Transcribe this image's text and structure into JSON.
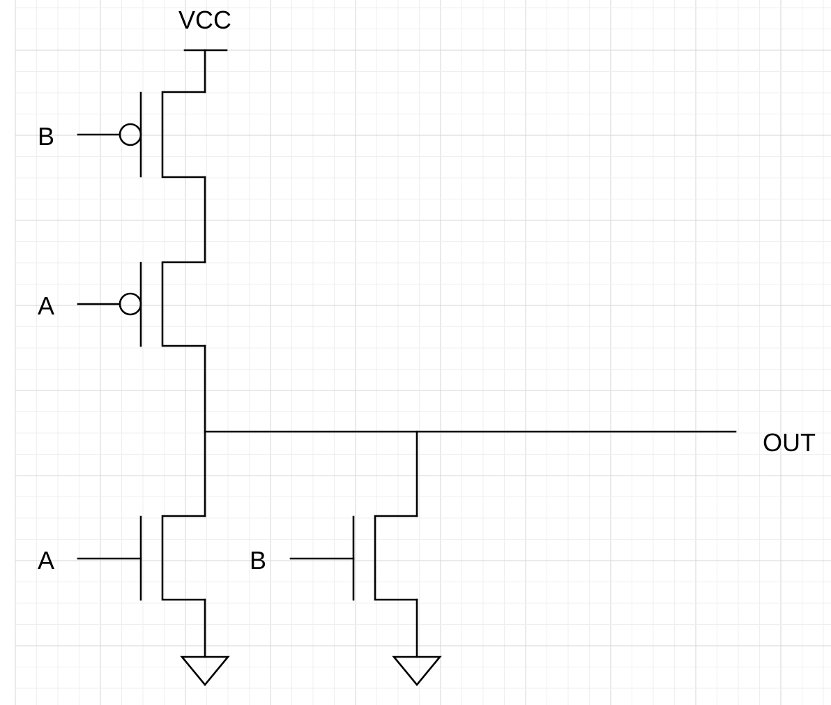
{
  "diagram": {
    "labels": {
      "vcc": "VCC",
      "out": "OUT",
      "pmos_top_gate": "B",
      "pmos_bottom_gate": "A",
      "nmos_left_gate": "A",
      "nmos_right_gate": "B"
    },
    "colors": {
      "background": "#ffffff",
      "grid_major": "#d6d6d6",
      "grid_minor": "#efefef",
      "wire": "#000000"
    }
  }
}
